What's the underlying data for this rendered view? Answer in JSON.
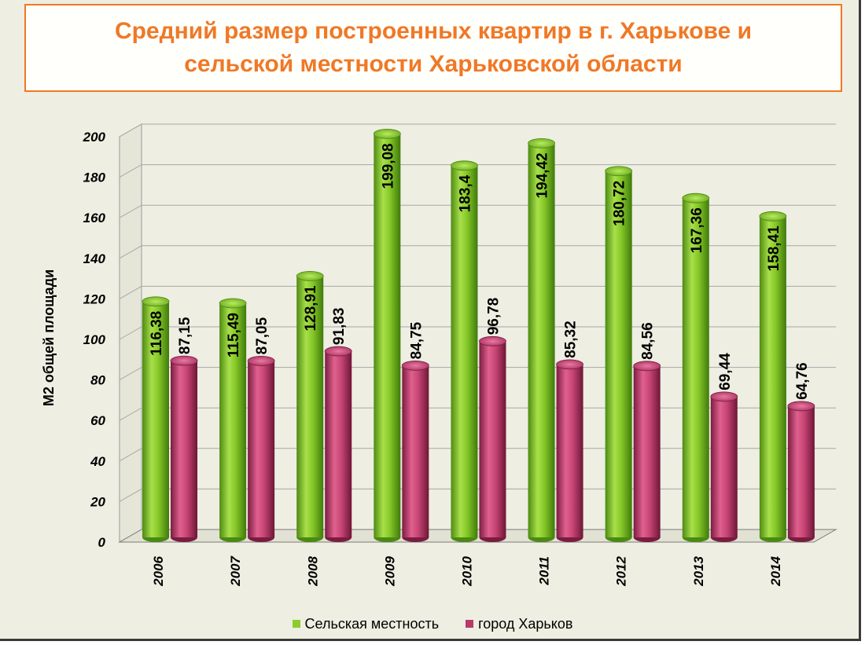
{
  "title": "Средний размер построенных квартир в г. Харькове и\nсельской местности Харьковской области",
  "colors": {
    "rural": "#8ccc2c",
    "city": "#b83a68",
    "title": "#f07826",
    "background": "#eeeee2"
  },
  "chart_data": {
    "type": "bar",
    "categories": [
      "2006",
      "2007",
      "2008",
      "2009",
      "2010",
      "2011",
      "2012",
      "2013",
      "2014"
    ],
    "series": [
      {
        "name": "Сельская местность",
        "values": [
          116.38,
          115.49,
          128.91,
          199.08,
          183.4,
          194.42,
          180.72,
          167.36,
          158.41
        ],
        "labels": [
          "116,38",
          "115,49",
          "128,91",
          "199,08",
          "183,4",
          "194,42",
          "180,72",
          "167,36",
          "158,41"
        ]
      },
      {
        "name": "город Харьков",
        "values": [
          87.15,
          87.05,
          91.83,
          84.75,
          96.78,
          85.32,
          84.56,
          69.44,
          64.76
        ],
        "labels": [
          "87,15",
          "87,05",
          "91,83",
          "84,75",
          "96,78",
          "85,32",
          "84,56",
          "69,44",
          "64,76"
        ]
      }
    ],
    "ylabel": "М2 общей площади",
    "xlabel": "",
    "ylim": [
      0,
      200
    ],
    "yticks": [
      "0",
      "20",
      "40",
      "60",
      "80",
      "100",
      "120",
      "140",
      "160",
      "180",
      "200"
    ],
    "grid": true,
    "legend": "bottom"
  },
  "legend": {
    "rural": "Сельская местность",
    "city": "город Харьков"
  }
}
